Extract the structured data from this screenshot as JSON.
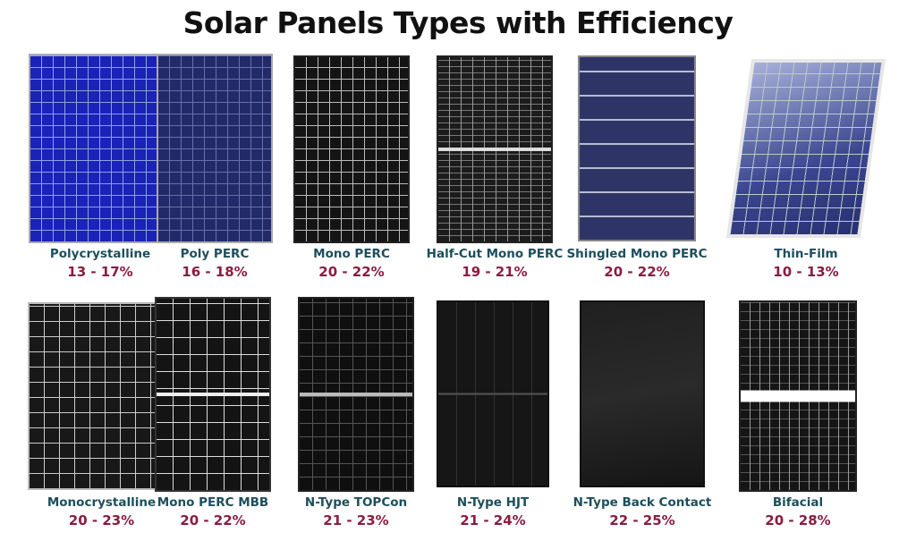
{
  "title": "Solar Panels Types with Efficiency",
  "colors": {
    "label": "#1d4e5c",
    "efficiency": "#8a1d3f"
  },
  "panels": [
    {
      "name": "Polycrystalline",
      "efficiency": "13 - 17%"
    },
    {
      "name": "Poly PERC",
      "efficiency": "16 - 18%"
    },
    {
      "name": "Mono PERC",
      "efficiency": "20 - 22%"
    },
    {
      "name": "Half-Cut Mono PERC",
      "efficiency": "19 - 21%"
    },
    {
      "name": "Shingled Mono PERC",
      "efficiency": "20 - 22%"
    },
    {
      "name": "Thin-Film",
      "efficiency": "10 - 13%"
    },
    {
      "name": "Monocrystalline",
      "efficiency": "20 - 23%"
    },
    {
      "name": "Mono PERC MBB",
      "efficiency": "20 - 22%"
    },
    {
      "name": "N-Type TOPCon",
      "efficiency": "21 - 23%"
    },
    {
      "name": "N-Type HJT",
      "efficiency": "21 - 24%"
    },
    {
      "name": "N-Type Back Contact",
      "efficiency": "22 - 25%"
    },
    {
      "name": "Bifacial",
      "efficiency": "20 - 28%"
    }
  ]
}
